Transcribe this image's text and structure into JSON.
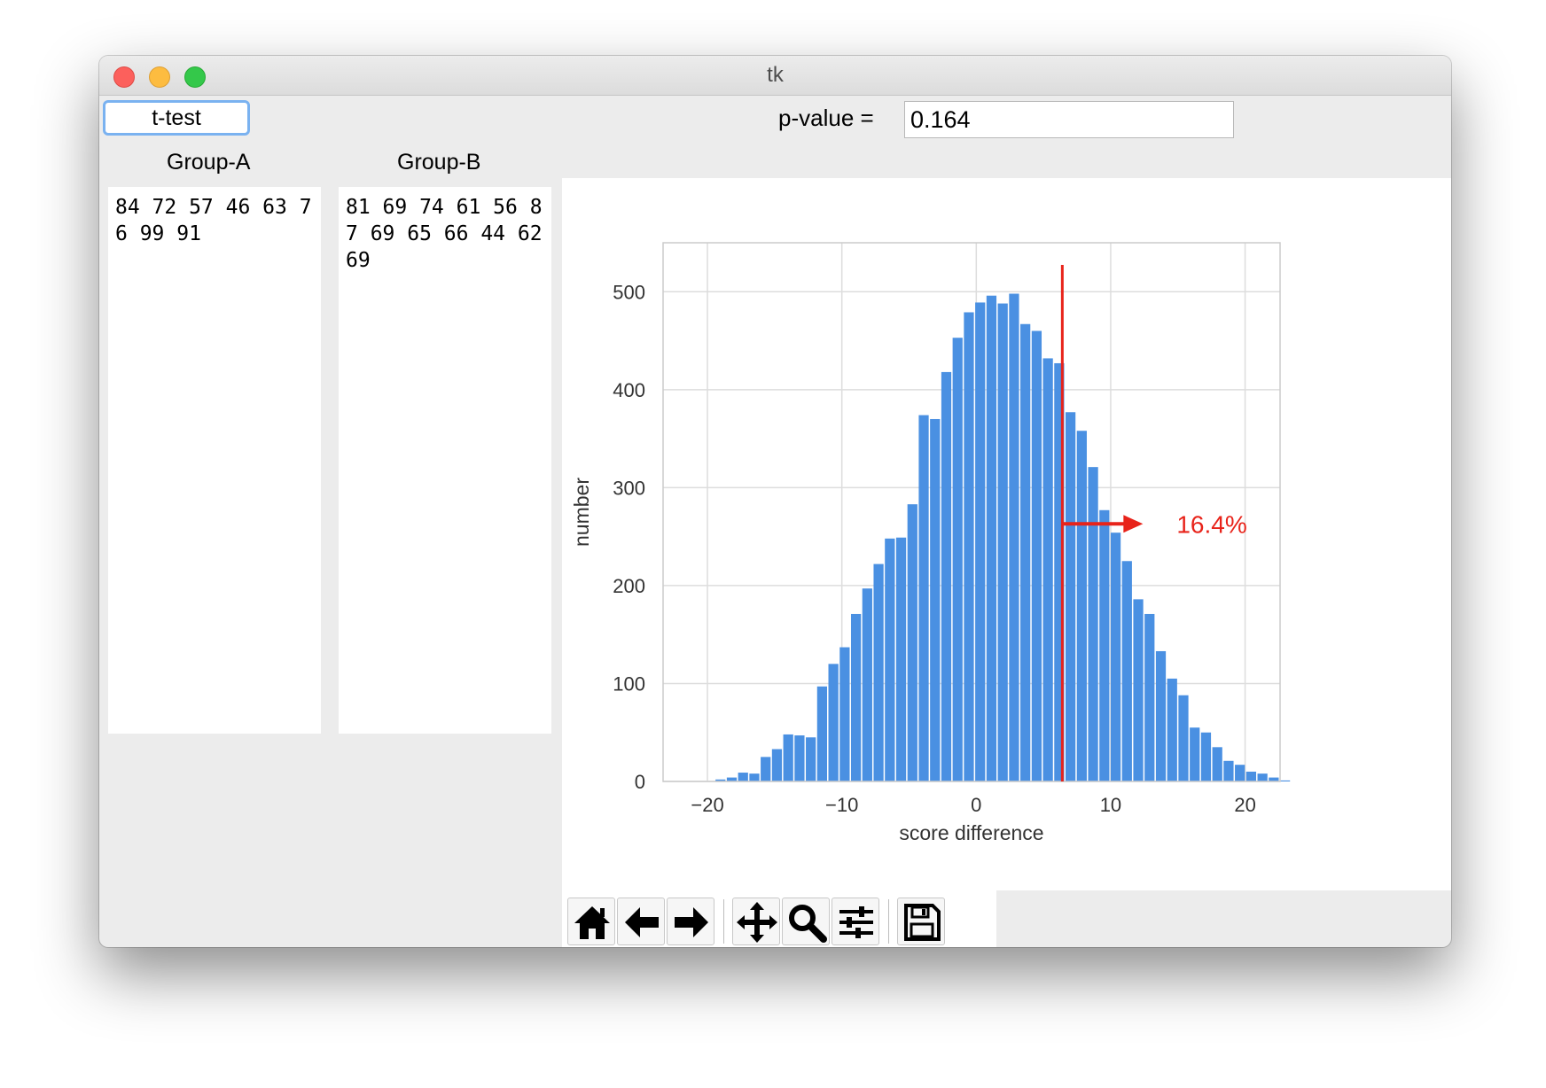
{
  "window": {
    "title": "tk"
  },
  "controls": {
    "ttest_label": "t-test",
    "pvalue_label": "p-value =",
    "pvalue_value": "0.164"
  },
  "groups": {
    "a": {
      "label": "Group-A",
      "data": "84 72 57 46 63 76 99 91"
    },
    "b": {
      "label": "Group-B",
      "data": "81 69 74 61 56 87 69 65 66 44 62 69"
    }
  },
  "toolbar": {
    "icons": [
      "home-icon",
      "back-arrow-icon",
      "forward-arrow-icon",
      "pan-icon",
      "zoom-icon",
      "subplots-config-icon",
      "save-icon"
    ]
  },
  "chart_data": {
    "type": "bar",
    "xlabel": "score difference",
    "ylabel": "number",
    "xlim": [
      -23.3,
      22.6
    ],
    "ylim": [
      0,
      550
    ],
    "xticks": [
      -20,
      -10,
      0,
      10,
      20
    ],
    "xtick_labels": [
      "−20",
      "−10",
      "0",
      "10",
      "20"
    ],
    "yticks": [
      0,
      100,
      200,
      300,
      400,
      500
    ],
    "grid": true,
    "bin_width": 0.84,
    "bin_start": -19.4,
    "values": [
      2,
      4,
      9,
      8,
      25,
      33,
      48,
      47,
      45,
      97,
      120,
      137,
      171,
      197,
      222,
      248,
      249,
      283,
      374,
      370,
      418,
      453,
      479,
      489,
      496,
      488,
      498,
      467,
      460,
      432,
      427,
      377,
      358,
      321,
      277,
      254,
      225,
      186,
      171,
      133,
      105,
      88,
      55,
      50,
      35,
      21,
      17,
      10,
      8,
      4,
      1
    ],
    "threshold_x": 6.4,
    "annotation": {
      "text": "16.4%",
      "arrow_from": [
        6.4,
        263
      ],
      "arrow_to": [
        12.4,
        263
      ]
    },
    "bar_color": "#4a90e2",
    "threshold_color": "#e8231a"
  }
}
